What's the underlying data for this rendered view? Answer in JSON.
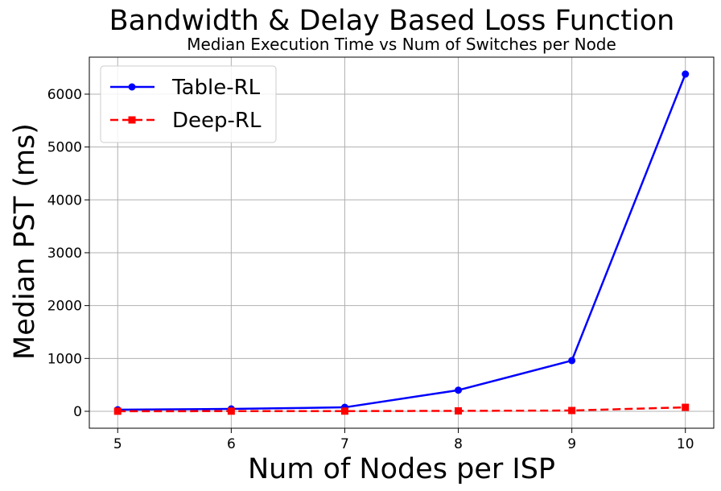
{
  "chart_data": {
    "type": "line",
    "title": "Bandwidth & Delay Based Loss Function",
    "subtitle": "Median Execution Time vs Num of Switches per Node",
    "xlabel": "Num of Nodes per ISP",
    "ylabel": "Median PST (ms)",
    "x": [
      5,
      6,
      7,
      8,
      9,
      10
    ],
    "xlim": [
      4.75,
      10.25
    ],
    "ylim": [
      -320,
      6700
    ],
    "xticks": [
      5,
      6,
      7,
      8,
      9,
      10
    ],
    "yticks": [
      0,
      1000,
      2000,
      3000,
      4000,
      5000,
      6000
    ],
    "grid": true,
    "legend_position": "top-left",
    "series": [
      {
        "name": "Table-RL",
        "values": [
          30,
          45,
          75,
          400,
          960,
          6380
        ],
        "color": "#0000ff",
        "marker": "circle",
        "linestyle": "solid"
      },
      {
        "name": "Deep-RL",
        "values": [
          2,
          3,
          4,
          8,
          15,
          75
        ],
        "color": "#ff0000",
        "marker": "square",
        "linestyle": "dashed"
      }
    ]
  }
}
